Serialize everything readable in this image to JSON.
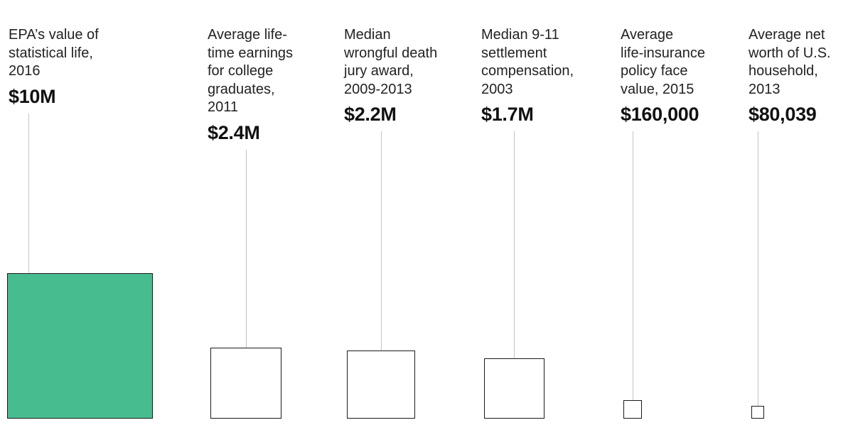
{
  "chart_data": {
    "type": "area",
    "encoding": "square area proportional to value",
    "unit": "USD",
    "highlight_color": "#47bd8f",
    "box_fill": "#ffffff",
    "box_border": "#1a1a1a",
    "leader_color": "#c4c4c4",
    "items": [
      {
        "label": "EPA’s value of\nstatistical life,\n2016",
        "display_value": "$10M",
        "value": 10000000,
        "highlight": true
      },
      {
        "label": "Average life-\ntime earnings\nfor college\ngraduates,\n2011",
        "display_value": "$2.4M",
        "value": 2400000,
        "highlight": false
      },
      {
        "label": "Median\nwrongful death\njury award,\n2009-2013",
        "display_value": "$2.2M",
        "value": 2200000,
        "highlight": false
      },
      {
        "label": "Median 9-11\nsettlement\ncompensation,\n2003",
        "display_value": "$1.7M",
        "value": 1700000,
        "highlight": false
      },
      {
        "label": "Average\nlife-insurance\npolicy face\nvalue, 2015",
        "display_value": "$160,000",
        "value": 160000,
        "highlight": false
      },
      {
        "label": "Average net\nworth of U.S.\nhousehold,\n2013",
        "display_value": "$80,039",
        "value": 80039,
        "highlight": false
      }
    ]
  }
}
